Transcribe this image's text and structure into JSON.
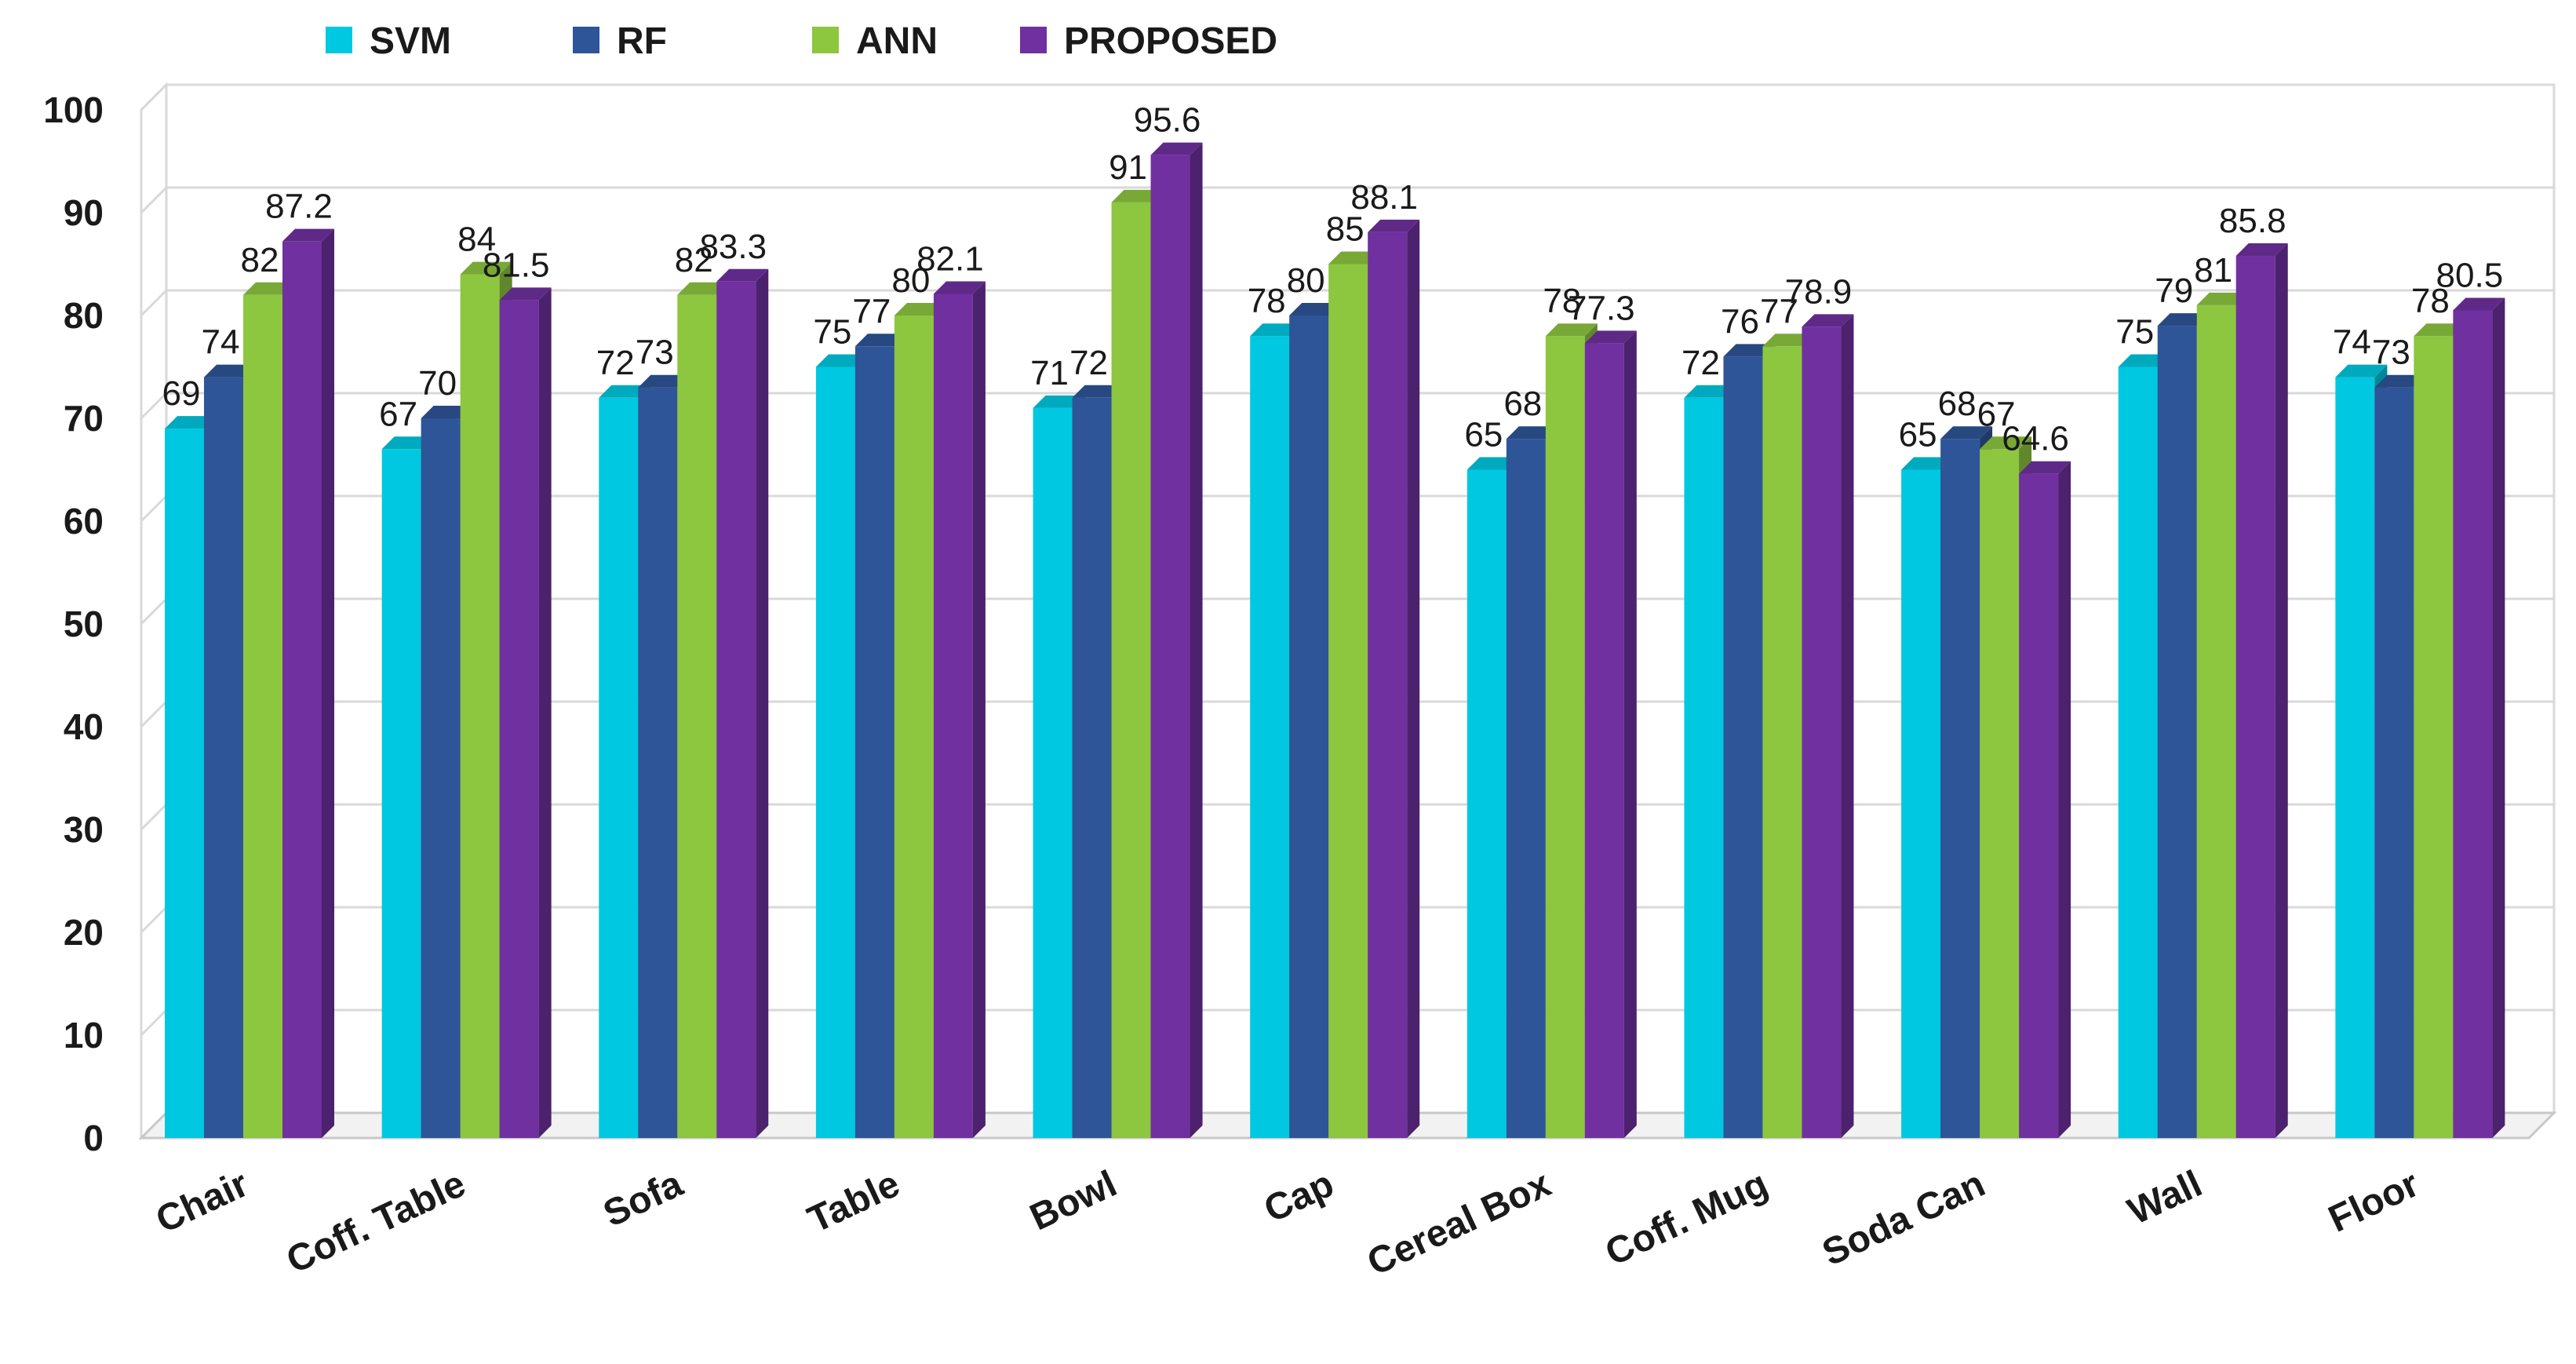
{
  "chart_data": {
    "type": "bar",
    "title": "",
    "xlabel": "",
    "ylabel": "",
    "ylim": [
      0,
      100
    ],
    "yticks": [
      0,
      10,
      20,
      30,
      40,
      50,
      60,
      70,
      80,
      90,
      100
    ],
    "grid": true,
    "legend_position": "top",
    "categories": [
      "Chair",
      "Coff. Table",
      "Sofa",
      "Table",
      "Bowl",
      "Cap",
      "Cereal Box",
      "Coff. Mug",
      "Soda Can",
      "Wall",
      "Floor"
    ],
    "series": [
      {
        "name": "SVM",
        "color": "#00c8e0",
        "values": [
          69,
          67,
          72,
          75,
          71,
          78,
          65,
          72,
          65,
          75,
          74
        ],
        "labels": [
          "69",
          "67",
          "72",
          "75",
          "71",
          "78",
          "65",
          "72",
          "65",
          "75",
          "74"
        ]
      },
      {
        "name": "RF",
        "color": "#2e5597",
        "values": [
          74,
          70,
          73,
          77,
          72,
          80,
          68,
          76,
          68,
          79,
          73
        ],
        "labels": [
          "74",
          "70",
          "73",
          "77",
          "72",
          "80",
          "68",
          "76",
          "68",
          "79",
          "73"
        ]
      },
      {
        "name": "ANN",
        "color": "#8dc63f",
        "values": [
          82,
          84,
          82,
          80,
          91,
          85,
          78,
          77,
          67,
          81,
          78
        ],
        "labels": [
          "82",
          "84",
          "82",
          "80",
          "91",
          "85",
          "78",
          "77",
          "67",
          "81",
          "78"
        ]
      },
      {
        "name": "PROPOSED",
        "color": "#7030a0",
        "values": [
          87.2,
          81.5,
          83.3,
          82.1,
          95.6,
          88.1,
          77.3,
          78.9,
          64.6,
          85.8,
          80.5
        ],
        "labels": [
          "87.2",
          "81.5",
          "83.3",
          "82.1",
          "95.6",
          "88.1",
          "77.3",
          "78.9",
          "64.6",
          "85.8",
          "80.5"
        ]
      }
    ]
  }
}
